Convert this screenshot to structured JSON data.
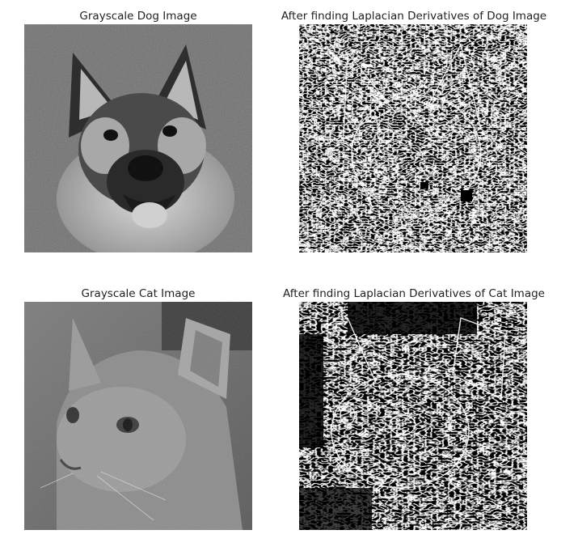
{
  "figure": {
    "panels": [
      {
        "title": "Grayscale Dog Image",
        "subject": "dog",
        "kind": "grayscale"
      },
      {
        "title": "After finding Laplacian Derivatives of Dog Image",
        "subject": "dog",
        "kind": "laplacian"
      },
      {
        "title": "Grayscale Cat Image",
        "subject": "cat",
        "kind": "grayscale"
      },
      {
        "title": "After finding Laplacian Derivatives of Cat Image",
        "subject": "cat",
        "kind": "laplacian"
      }
    ]
  },
  "colors": {
    "background": "#ffffff",
    "edge_black": "#000000",
    "edge_white": "#ffffff",
    "title_text": "#222222"
  }
}
